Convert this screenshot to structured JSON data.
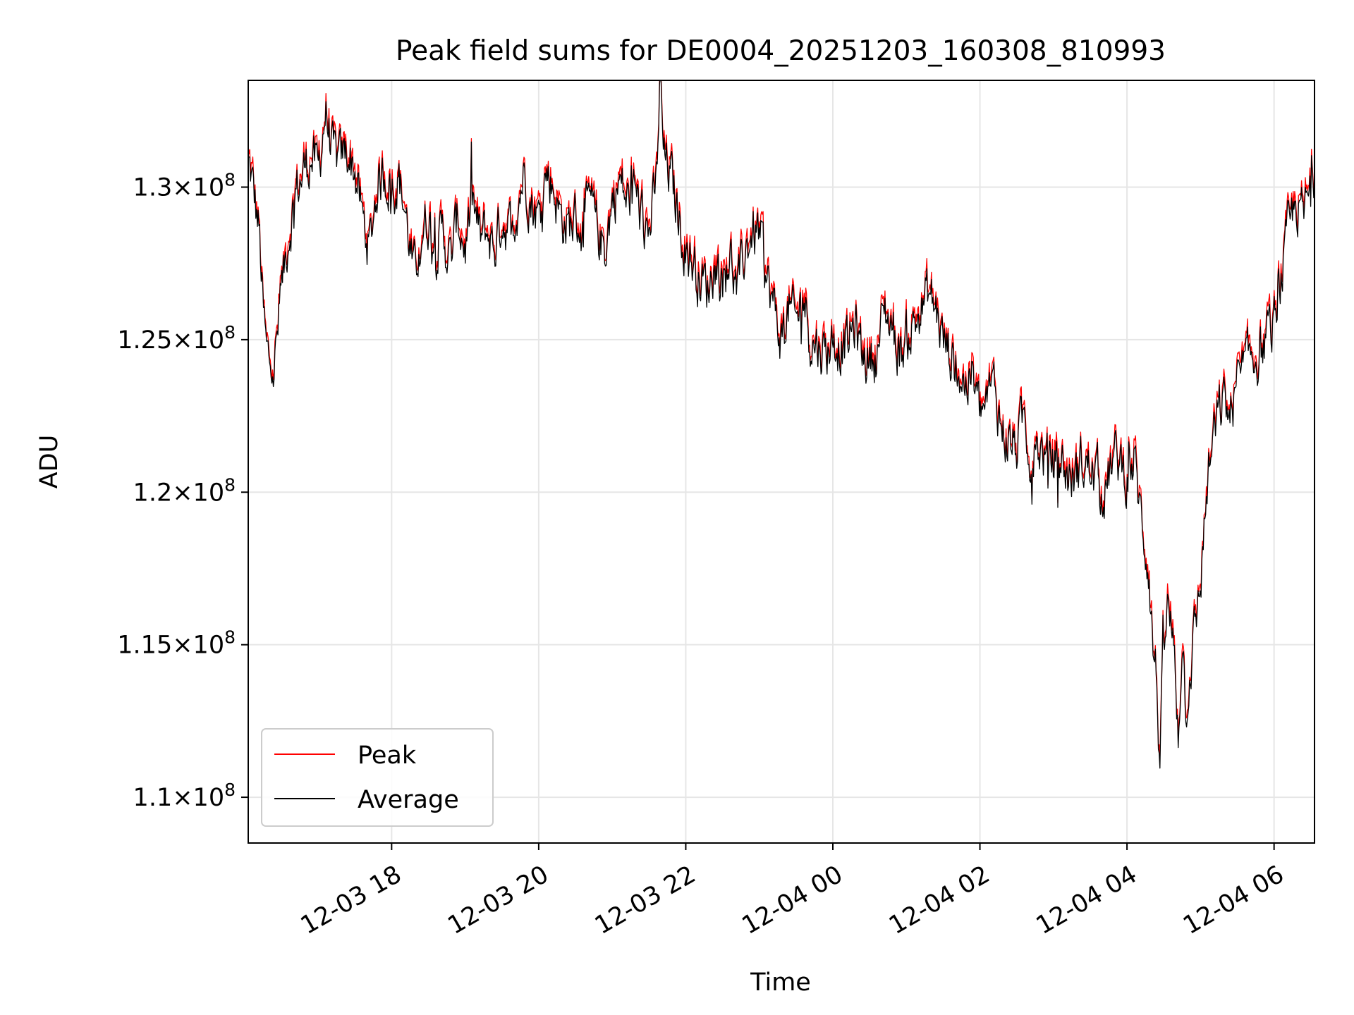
{
  "chart_data": {
    "type": "line",
    "title": "Peak field sums for DE0004_20251203_160308_810993",
    "xlabel": "Time",
    "ylabel": "ADU",
    "x_unit": "hours since 2025-12-03 00:00",
    "xlim": [
      16.05,
      30.55
    ],
    "ylim": [
      108.5,
      133.5
    ],
    "y_scale_note": "values in units of 1e6 ADU",
    "grid": true,
    "legend_position": "lower-left",
    "x_ticks": [
      {
        "value": 18,
        "label": "12-03 18"
      },
      {
        "value": 20,
        "label": "12-03 20"
      },
      {
        "value": 22,
        "label": "12-03 22"
      },
      {
        "value": 24,
        "label": "12-04 00"
      },
      {
        "value": 26,
        "label": "12-04 02"
      },
      {
        "value": 28,
        "label": "12-04 04"
      },
      {
        "value": 30,
        "label": "12-04 06"
      }
    ],
    "y_ticks": [
      {
        "value": 110,
        "mantissa": "1.1",
        "exponent": "8"
      },
      {
        "value": 115,
        "mantissa": "1.15",
        "exponent": "8"
      },
      {
        "value": 120,
        "mantissa": "1.2",
        "exponent": "8"
      },
      {
        "value": 125,
        "mantissa": "1.25",
        "exponent": "8"
      },
      {
        "value": 130,
        "mantissa": "1.3",
        "exponent": "8"
      }
    ],
    "series": [
      {
        "name": "Peak",
        "color": "#ff0000",
        "offset": 0.25
      },
      {
        "name": "Average",
        "color": "#000000",
        "offset": 0.0
      }
    ],
    "x": [
      16.05,
      16.1,
      16.2,
      16.25,
      16.3,
      16.4,
      16.5,
      16.6,
      16.7,
      16.8,
      16.9,
      17.0,
      17.1,
      17.2,
      17.3,
      17.4,
      17.5,
      17.6,
      17.7,
      17.8,
      17.9,
      18.0,
      18.1,
      18.2,
      18.3,
      18.4,
      18.5,
      18.6,
      18.7,
      18.8,
      18.9,
      19.0,
      19.1,
      19.2,
      19.3,
      19.4,
      19.5,
      19.6,
      19.7,
      19.8,
      19.9,
      20.0,
      20.1,
      20.2,
      20.3,
      20.4,
      20.5,
      20.6,
      20.7,
      20.8,
      20.9,
      21.0,
      21.1,
      21.2,
      21.3,
      21.4,
      21.5,
      21.6,
      21.65,
      21.7,
      21.8,
      21.9,
      22.0,
      22.1,
      22.2,
      22.3,
      22.4,
      22.5,
      22.6,
      22.7,
      22.8,
      22.9,
      23.0,
      23.1,
      23.2,
      23.3,
      23.4,
      23.5,
      23.6,
      23.7,
      23.8,
      23.9,
      24.0,
      24.1,
      24.2,
      24.3,
      24.4,
      24.5,
      24.6,
      24.7,
      24.8,
      24.9,
      25.0,
      25.1,
      25.2,
      25.3,
      25.4,
      25.5,
      25.6,
      25.7,
      25.8,
      25.9,
      26.0,
      26.1,
      26.2,
      26.3,
      26.4,
      26.5,
      26.6,
      26.7,
      26.8,
      26.9,
      27.0,
      27.1,
      27.2,
      27.3,
      27.4,
      27.5,
      27.6,
      27.7,
      27.8,
      27.9,
      27.95,
      28.0,
      28.1,
      28.2,
      28.3,
      28.35,
      28.4,
      28.45,
      28.5,
      28.55,
      28.6,
      28.65,
      28.7,
      28.75,
      28.8,
      28.9,
      29.0,
      29.1,
      29.2,
      29.3,
      29.4,
      29.5,
      29.6,
      29.7,
      29.8,
      29.9,
      30.0,
      30.1,
      30.2,
      30.3,
      30.4,
      30.5,
      30.55
    ],
    "values": [
      130.8,
      130.2,
      128.5,
      126.0,
      124.5,
      124.0,
      126.5,
      128.5,
      129.8,
      130.5,
      131.0,
      130.5,
      132.5,
      131.0,
      130.8,
      131.2,
      130.5,
      129.0,
      128.0,
      130.0,
      130.5,
      130.0,
      130.3,
      129.0,
      127.0,
      128.5,
      129.0,
      128.0,
      128.5,
      127.5,
      129.0,
      128.0,
      129.5,
      128.3,
      128.5,
      128.0,
      129.0,
      128.6,
      129.3,
      130.5,
      129.5,
      129.0,
      130.5,
      130.0,
      129.0,
      128.7,
      129.0,
      128.5,
      129.5,
      128.5,
      128.0,
      129.5,
      130.2,
      129.5,
      130.0,
      129.0,
      128.5,
      130.0,
      133.5,
      131.0,
      130.3,
      129.0,
      128.0,
      127.5,
      127.0,
      126.7,
      127.5,
      127.0,
      127.8,
      126.5,
      127.8,
      128.5,
      128.5,
      127.0,
      126.0,
      125.0,
      126.0,
      125.5,
      126.5,
      125.0,
      124.8,
      124.6,
      125.0,
      124.8,
      124.8,
      125.5,
      124.5,
      124.4,
      124.5,
      126.0,
      125.5,
      124.5,
      125.0,
      125.5,
      126.0,
      126.5,
      126.0,
      125.0,
      124.5,
      124.0,
      123.5,
      123.8,
      122.5,
      123.0,
      123.5,
      122.0,
      121.6,
      121.5,
      122.5,
      121.0,
      121.5,
      121.0,
      121.0,
      121.0,
      120.5,
      120.5,
      121.0,
      120.7,
      120.5,
      120.0,
      121.0,
      121.0,
      120.8,
      120.5,
      121.0,
      119.0,
      117.5,
      115.0,
      114.0,
      111.0,
      115.0,
      116.0,
      115.5,
      114.5,
      112.0,
      115.5,
      113.0,
      115.0,
      117.0,
      120.5,
      122.0,
      123.0,
      122.5,
      123.5,
      124.0,
      124.5,
      124.5,
      125.0,
      125.5,
      127.0,
      128.5,
      129.5,
      129.0,
      130.0,
      130.5
    ],
    "noise_amplitude": 0.9
  }
}
